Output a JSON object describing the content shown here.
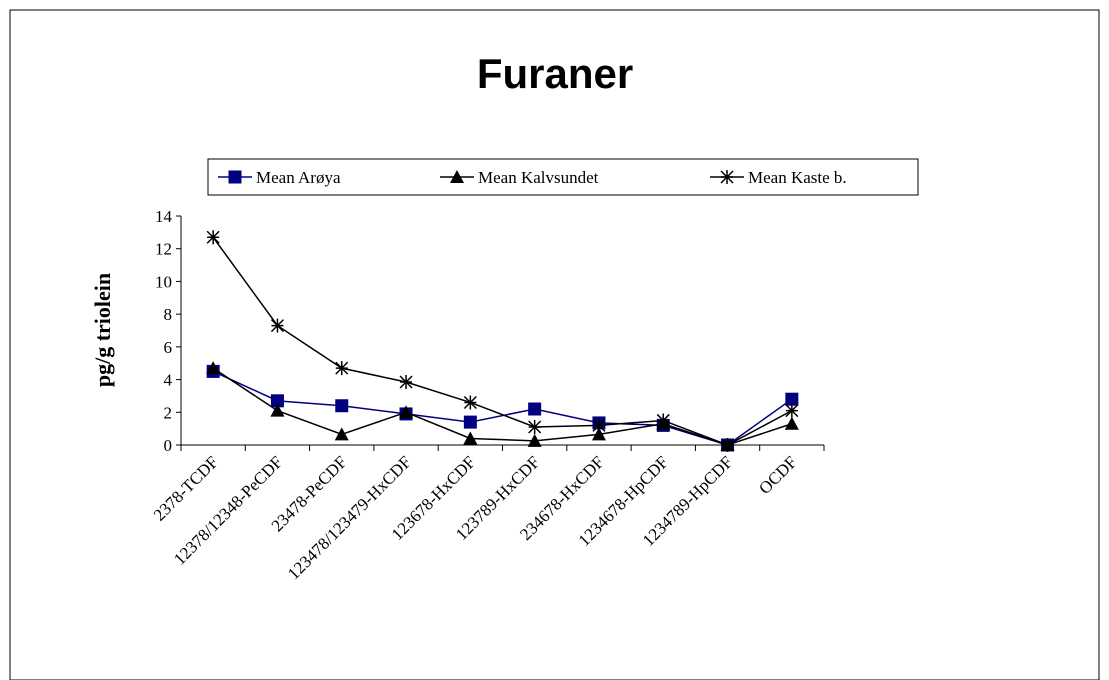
{
  "chart_data": {
    "type": "line",
    "title": "Furaner",
    "y_label": "pg/g triolein",
    "categories": [
      "2378-TCDF",
      "12378/12348-PeCDF",
      "23478-PeCDF",
      "123478/123479-HxCDF",
      "123678-HxCDF",
      "123789-HxCDF",
      "234678-HxCDF",
      "1234678-HpCDF",
      "1234789-HpCDF",
      "OCDF"
    ],
    "series": [
      {
        "name": "Mean Arøya",
        "color": "#000080",
        "marker": "square",
        "values": [
          4.5,
          2.7,
          2.4,
          1.9,
          1.4,
          2.2,
          1.35,
          1.2,
          0.0,
          2.8
        ]
      },
      {
        "name": "Mean Kalvsundet",
        "color": "#000000",
        "marker": "triangle",
        "values": [
          4.7,
          2.1,
          0.65,
          2.0,
          0.4,
          0.25,
          0.65,
          1.3,
          0.0,
          1.3
        ]
      },
      {
        "name": "Mean Kaste b.",
        "color": "#000000",
        "marker": "star",
        "values": [
          12.7,
          7.3,
          4.7,
          3.85,
          2.6,
          1.1,
          1.2,
          1.5,
          0.0,
          2.1
        ]
      }
    ],
    "ylim": [
      0,
      14
    ],
    "yticks": [
      0,
      2,
      4,
      6,
      8,
      10,
      12,
      14
    ],
    "grid": false,
    "legend": "top"
  }
}
